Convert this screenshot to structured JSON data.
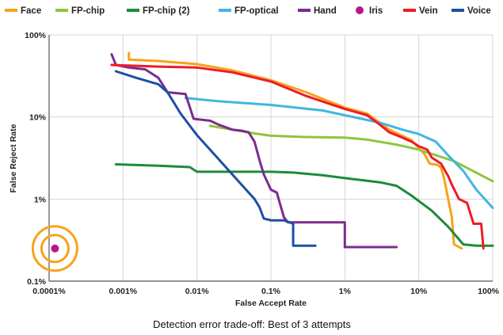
{
  "chart_data": {
    "type": "line",
    "title": "",
    "caption": "Detection error trade-off: Best of 3 attempts",
    "xlabel": "False Accept Rate",
    "ylabel": "False Reject Rate",
    "x_scale": "log",
    "y_scale": "log",
    "xlim": [
      0.0001,
      100
    ],
    "ylim": [
      0.1,
      100
    ],
    "x_ticks": [
      0.0001,
      0.001,
      0.01,
      0.1,
      1,
      10,
      100
    ],
    "x_tick_labels": [
      "0.0001%",
      "0.001%",
      "0.01%",
      "0.1%",
      "1%",
      "10%",
      "100%"
    ],
    "y_ticks": [
      0.1,
      1,
      10,
      100
    ],
    "y_tick_labels": [
      "0.1%",
      "1%",
      "10%",
      "100%"
    ],
    "grid": true,
    "legend_position": "top",
    "series": [
      {
        "name": "Face",
        "color": "#f7a21b",
        "marker": "line",
        "points": [
          [
            0.0012,
            60
          ],
          [
            0.0012,
            50
          ],
          [
            0.003,
            48
          ],
          [
            0.01,
            44
          ],
          [
            0.03,
            37
          ],
          [
            0.1,
            28
          ],
          [
            0.3,
            20
          ],
          [
            1,
            13
          ],
          [
            2,
            11
          ],
          [
            4,
            7
          ],
          [
            8,
            5.2
          ],
          [
            12,
            3.5
          ],
          [
            14,
            2.7
          ],
          [
            18,
            2.6
          ],
          [
            20,
            2.4
          ],
          [
            22,
            1.8
          ],
          [
            25,
            1.0
          ],
          [
            28,
            0.6
          ],
          [
            30,
            0.28
          ],
          [
            38,
            0.25
          ]
        ]
      },
      {
        "name": "FP-chip",
        "color": "#8dc63f",
        "marker": "line",
        "points": [
          [
            0.015,
            7.8
          ],
          [
            0.03,
            7.0
          ],
          [
            0.06,
            6.3
          ],
          [
            0.1,
            5.9
          ],
          [
            0.3,
            5.7
          ],
          [
            1,
            5.6
          ],
          [
            2,
            5.3
          ],
          [
            5,
            4.6
          ],
          [
            10,
            4.0
          ],
          [
            30,
            2.9
          ],
          [
            100,
            1.65
          ]
        ]
      },
      {
        "name": "FP-chip (2)",
        "color": "#1e8a3c",
        "marker": "line",
        "points": [
          [
            0.0008,
            2.65
          ],
          [
            0.003,
            2.55
          ],
          [
            0.008,
            2.45
          ],
          [
            0.01,
            2.15
          ],
          [
            0.03,
            2.15
          ],
          [
            0.1,
            2.15
          ],
          [
            0.2,
            2.1
          ],
          [
            0.5,
            1.95
          ],
          [
            1,
            1.8
          ],
          [
            3,
            1.6
          ],
          [
            5,
            1.45
          ],
          [
            8,
            1.1
          ],
          [
            15,
            0.72
          ],
          [
            25,
            0.46
          ],
          [
            40,
            0.28
          ],
          [
            60,
            0.27
          ],
          [
            100,
            0.27
          ]
        ]
      },
      {
        "name": "FP-optical",
        "color": "#41b6e0",
        "marker": "line",
        "points": [
          [
            0.007,
            17
          ],
          [
            0.02,
            15.5
          ],
          [
            0.1,
            14
          ],
          [
            0.5,
            12
          ],
          [
            1,
            10.5
          ],
          [
            3,
            8.5
          ],
          [
            6,
            7
          ],
          [
            10,
            6.2
          ],
          [
            17,
            5
          ],
          [
            25,
            3.4
          ],
          [
            40,
            2.2
          ],
          [
            60,
            1.3
          ],
          [
            100,
            0.78
          ]
        ]
      },
      {
        "name": "Hand",
        "color": "#7b2c8e",
        "marker": "line",
        "points": [
          [
            0.0007,
            58
          ],
          [
            0.0008,
            43
          ],
          [
            0.0012,
            40
          ],
          [
            0.002,
            38
          ],
          [
            0.003,
            30
          ],
          [
            0.004,
            20
          ],
          [
            0.007,
            19
          ],
          [
            0.009,
            9.5
          ],
          [
            0.015,
            9
          ],
          [
            0.02,
            8
          ],
          [
            0.03,
            7
          ],
          [
            0.04,
            6.8
          ],
          [
            0.05,
            6.5
          ],
          [
            0.06,
            5
          ],
          [
            0.07,
            3
          ],
          [
            0.08,
            2
          ],
          [
            0.1,
            1.3
          ],
          [
            0.12,
            1.2
          ],
          [
            0.15,
            0.6
          ],
          [
            0.17,
            0.52
          ],
          [
            0.3,
            0.52
          ],
          [
            0.6,
            0.52
          ],
          [
            1,
            0.52
          ],
          [
            1,
            0.26
          ],
          [
            2,
            0.26
          ],
          [
            5,
            0.26
          ]
        ]
      },
      {
        "name": "Iris",
        "color": "#b5178c",
        "marker": "dot",
        "points": [
          [
            0.00012,
            0.25
          ]
        ]
      },
      {
        "name": "Vein",
        "color": "#ee1c25",
        "marker": "line",
        "points": [
          [
            0.0007,
            43
          ],
          [
            0.003,
            41
          ],
          [
            0.01,
            40
          ],
          [
            0.03,
            35
          ],
          [
            0.1,
            27
          ],
          [
            0.3,
            18
          ],
          [
            1,
            12.5
          ],
          [
            2,
            10.5
          ],
          [
            3,
            8.0
          ],
          [
            4,
            6.5
          ],
          [
            5,
            6.0
          ],
          [
            6,
            5.6
          ],
          [
            8,
            5.0
          ],
          [
            10,
            4.4
          ],
          [
            13,
            4.0
          ],
          [
            15,
            3.2
          ],
          [
            20,
            2.7
          ],
          [
            25,
            1.9
          ],
          [
            28,
            1.5
          ],
          [
            35,
            1.0
          ],
          [
            45,
            0.9
          ],
          [
            55,
            0.5
          ],
          [
            70,
            0.5
          ],
          [
            75,
            0.25
          ]
        ]
      },
      {
        "name": "Voice",
        "color": "#1f4fa3",
        "marker": "line",
        "points": [
          [
            0.0008,
            36
          ],
          [
            0.0015,
            30
          ],
          [
            0.003,
            25
          ],
          [
            0.004,
            20
          ],
          [
            0.006,
            11
          ],
          [
            0.01,
            6
          ],
          [
            0.015,
            4
          ],
          [
            0.02,
            3
          ],
          [
            0.03,
            2
          ],
          [
            0.04,
            1.5
          ],
          [
            0.05,
            1.2
          ],
          [
            0.06,
            1.0
          ],
          [
            0.07,
            0.8
          ],
          [
            0.08,
            0.58
          ],
          [
            0.1,
            0.55
          ],
          [
            0.15,
            0.55
          ],
          [
            0.2,
            0.5
          ],
          [
            0.2,
            0.27
          ],
          [
            0.4,
            0.27
          ]
        ]
      }
    ]
  }
}
